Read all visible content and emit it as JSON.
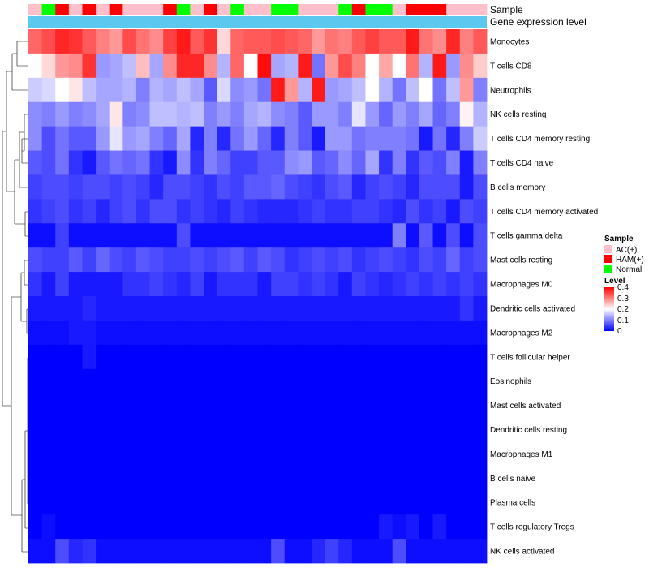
{
  "chart_data": {
    "type": "heatmap",
    "title": "",
    "annotation_labels": {
      "sample": "Sample",
      "expression": "Gene expression level"
    },
    "rows": [
      "Monocytes",
      "T cells CD8",
      "Neutrophils",
      "NK cells resting",
      "T cells CD4 memory resting",
      "T cells CD4 naive",
      "B cells memory",
      "T cells CD4 memory activated",
      "T cells gamma delta",
      "Mast cells resting",
      "Macrophages M0",
      "Dendritic cells activated",
      "Macrophages M2",
      "T cells follicular helper",
      "Eosinophils",
      "Mast cells activated",
      "Dendritic cells resting",
      "Macrophages M1",
      "B cells naive",
      "Plasma cells",
      "T cells regulatory  Tregs",
      "NK cells activated"
    ],
    "sample_groups": [
      "AC",
      "Normal",
      "HAM",
      "AC",
      "HAM",
      "AC",
      "HAM",
      "AC",
      "AC",
      "AC",
      "HAM",
      "Normal",
      "AC",
      "HAM",
      "AC",
      "Normal",
      "AC",
      "AC",
      "Normal",
      "Normal",
      "AC",
      "AC",
      "AC",
      "Normal",
      "HAM",
      "Normal",
      "Normal",
      "AC",
      "HAM",
      "HAM",
      "HAM",
      "AC",
      "AC",
      "AC"
    ],
    "values": [
      [
        0.32,
        0.34,
        0.37,
        0.36,
        0.33,
        0.3,
        0.28,
        0.34,
        0.31,
        0.29,
        0.35,
        0.38,
        0.33,
        0.36,
        0.23,
        0.32,
        0.33,
        0.33,
        0.34,
        0.33,
        0.32,
        0.28,
        0.31,
        0.3,
        0.33,
        0.35,
        0.33,
        0.33,
        0.38,
        0.31,
        0.29,
        0.37,
        0.3,
        0.33
      ],
      [
        0.2,
        0.23,
        0.28,
        0.29,
        0.36,
        0.12,
        0.13,
        0.15,
        0.25,
        0.13,
        0.29,
        0.37,
        0.37,
        0.29,
        0.14,
        0.32,
        0.2,
        0.39,
        0.13,
        0.14,
        0.38,
        0.09,
        0.28,
        0.34,
        0.3,
        0.2,
        0.27,
        0.2,
        0.31,
        0.14,
        0.38,
        0.12,
        0.29,
        0.24
      ],
      [
        0.16,
        0.17,
        0.2,
        0.22,
        0.15,
        0.13,
        0.13,
        0.14,
        0.1,
        0.14,
        0.13,
        0.15,
        0.13,
        0.07,
        0.17,
        0.11,
        0.12,
        0.09,
        0.38,
        0.28,
        0.14,
        0.38,
        0.12,
        0.13,
        0.15,
        0.2,
        0.14,
        0.09,
        0.15,
        0.2,
        0.09,
        0.15,
        0.28,
        0.1
      ],
      [
        0.11,
        0.1,
        0.12,
        0.1,
        0.11,
        0.13,
        0.22,
        0.1,
        0.11,
        0.15,
        0.15,
        0.14,
        0.15,
        0.1,
        0.12,
        0.1,
        0.13,
        0.14,
        0.11,
        0.1,
        0.07,
        0.12,
        0.12,
        0.1,
        0.18,
        0.12,
        0.08,
        0.12,
        0.1,
        0.13,
        0.08,
        0.1,
        0.21,
        0.14
      ],
      [
        0.11,
        0.06,
        0.09,
        0.07,
        0.07,
        0.12,
        0.18,
        0.12,
        0.13,
        0.1,
        0.08,
        0.13,
        0.03,
        0.1,
        0.03,
        0.09,
        0.12,
        0.08,
        0.03,
        0.1,
        0.07,
        0.02,
        0.12,
        0.12,
        0.09,
        0.1,
        0.1,
        0.1,
        0.09,
        0.02,
        0.09,
        0.03,
        0.1,
        0.16
      ],
      [
        0.07,
        0.06,
        0.09,
        0.04,
        0.02,
        0.07,
        0.09,
        0.08,
        0.09,
        0.04,
        0.02,
        0.11,
        0.04,
        0.1,
        0.08,
        0.05,
        0.05,
        0.07,
        0.07,
        0.11,
        0.12,
        0.07,
        0.08,
        0.11,
        0.08,
        0.13,
        0.04,
        0.1,
        0.04,
        0.07,
        0.06,
        0.1,
        0.02,
        0.1
      ],
      [
        0.05,
        0.06,
        0.06,
        0.05,
        0.06,
        0.06,
        0.05,
        0.06,
        0.05,
        0.03,
        0.06,
        0.06,
        0.05,
        0.04,
        0.06,
        0.05,
        0.07,
        0.07,
        0.08,
        0.06,
        0.05,
        0.04,
        0.06,
        0.07,
        0.03,
        0.05,
        0.06,
        0.05,
        0.03,
        0.06,
        0.06,
        0.06,
        0.02,
        0.06
      ],
      [
        0.04,
        0.05,
        0.06,
        0.04,
        0.05,
        0.03,
        0.05,
        0.06,
        0.04,
        0.06,
        0.06,
        0.04,
        0.05,
        0.04,
        0.03,
        0.05,
        0.04,
        0.03,
        0.03,
        0.03,
        0.04,
        0.05,
        0.04,
        0.04,
        0.05,
        0.05,
        0.04,
        0.03,
        0.06,
        0.04,
        0.05,
        0.02,
        0.06,
        0.05
      ],
      [
        0.01,
        0.01,
        0.05,
        0.01,
        0.01,
        0.01,
        0.01,
        0.01,
        0.01,
        0.01,
        0.01,
        0.06,
        0.01,
        0.01,
        0.01,
        0.01,
        0.01,
        0.01,
        0.01,
        0.01,
        0.01,
        0.01,
        0.01,
        0.01,
        0.01,
        0.01,
        0.01,
        0.1,
        0.01,
        0.07,
        0.01,
        0.06,
        0.01,
        0.06
      ],
      [
        0.06,
        0.05,
        0.05,
        0.07,
        0.05,
        0.08,
        0.06,
        0.05,
        0.07,
        0.06,
        0.05,
        0.05,
        0.06,
        0.05,
        0.06,
        0.07,
        0.05,
        0.07,
        0.06,
        0.04,
        0.05,
        0.06,
        0.05,
        0.06,
        0.04,
        0.05,
        0.06,
        0.05,
        0.04,
        0.06,
        0.05,
        0.08,
        0.05,
        0.06
      ],
      [
        0.04,
        0.02,
        0.05,
        0.02,
        0.02,
        0.02,
        0.02,
        0.04,
        0.04,
        0.05,
        0.04,
        0.03,
        0.05,
        0.02,
        0.04,
        0.04,
        0.04,
        0.02,
        0.05,
        0.05,
        0.04,
        0.05,
        0.04,
        0.02,
        0.05,
        0.04,
        0.03,
        0.04,
        0.05,
        0.04,
        0.05,
        0.04,
        0.05,
        0.04
      ],
      [
        0.02,
        0.02,
        0.02,
        0.02,
        0.03,
        0.02,
        0.02,
        0.02,
        0.02,
        0.02,
        0.02,
        0.02,
        0.02,
        0.02,
        0.02,
        0.02,
        0.02,
        0.02,
        0.02,
        0.02,
        0.02,
        0.02,
        0.02,
        0.02,
        0.02,
        0.02,
        0.02,
        0.02,
        0.02,
        0.02,
        0.02,
        0.02,
        0.04,
        0.02
      ],
      [
        0.01,
        0.01,
        0.01,
        0.02,
        0.02,
        0.01,
        0.01,
        0.01,
        0.01,
        0.01,
        0.01,
        0.01,
        0.01,
        0.01,
        0.01,
        0.01,
        0.01,
        0.01,
        0.01,
        0.01,
        0.01,
        0.01,
        0.01,
        0.01,
        0.01,
        0.01,
        0.01,
        0.01,
        0.01,
        0.01,
        0.01,
        0.01,
        0.01,
        0.01
      ],
      [
        0.0,
        0.0,
        0.0,
        0.0,
        0.02,
        0.0,
        0.0,
        0.0,
        0.0,
        0.0,
        0.0,
        0.0,
        0.0,
        0.0,
        0.0,
        0.0,
        0.0,
        0.0,
        0.0,
        0.0,
        0.0,
        0.0,
        0.0,
        0.0,
        0.0,
        0.0,
        0.0,
        0.0,
        0.0,
        0.0,
        0.0,
        0.0,
        0.0,
        0.0
      ],
      [
        0.0,
        0.0,
        0.0,
        0.0,
        0.0,
        0.0,
        0.0,
        0.0,
        0.0,
        0.0,
        0.0,
        0.0,
        0.0,
        0.0,
        0.0,
        0.0,
        0.0,
        0.0,
        0.0,
        0.0,
        0.0,
        0.0,
        0.0,
        0.0,
        0.0,
        0.0,
        0.0,
        0.0,
        0.0,
        0.0,
        0.0,
        0.0,
        0.0,
        0.0
      ],
      [
        0.0,
        0.0,
        0.0,
        0.0,
        0.0,
        0.0,
        0.0,
        0.0,
        0.0,
        0.0,
        0.0,
        0.0,
        0.0,
        0.0,
        0.0,
        0.0,
        0.0,
        0.0,
        0.0,
        0.0,
        0.0,
        0.0,
        0.0,
        0.0,
        0.0,
        0.0,
        0.0,
        0.0,
        0.0,
        0.0,
        0.0,
        0.0,
        0.0,
        0.0
      ],
      [
        0.0,
        0.0,
        0.0,
        0.0,
        0.0,
        0.0,
        0.0,
        0.0,
        0.0,
        0.0,
        0.0,
        0.0,
        0.0,
        0.0,
        0.0,
        0.0,
        0.0,
        0.0,
        0.0,
        0.0,
        0.0,
        0.0,
        0.0,
        0.0,
        0.0,
        0.0,
        0.0,
        0.0,
        0.0,
        0.0,
        0.0,
        0.0,
        0.0,
        0.0
      ],
      [
        0.0,
        0.0,
        0.0,
        0.0,
        0.0,
        0.0,
        0.0,
        0.0,
        0.0,
        0.0,
        0.0,
        0.0,
        0.0,
        0.0,
        0.0,
        0.0,
        0.0,
        0.0,
        0.0,
        0.0,
        0.0,
        0.0,
        0.0,
        0.0,
        0.0,
        0.0,
        0.0,
        0.0,
        0.0,
        0.0,
        0.0,
        0.0,
        0.0,
        0.0
      ],
      [
        0.0,
        0.0,
        0.0,
        0.0,
        0.0,
        0.0,
        0.0,
        0.0,
        0.0,
        0.0,
        0.0,
        0.0,
        0.0,
        0.0,
        0.0,
        0.0,
        0.0,
        0.0,
        0.0,
        0.0,
        0.0,
        0.0,
        0.0,
        0.0,
        0.0,
        0.0,
        0.0,
        0.0,
        0.0,
        0.0,
        0.0,
        0.0,
        0.0,
        0.0
      ],
      [
        0.0,
        0.0,
        0.0,
        0.0,
        0.0,
        0.0,
        0.0,
        0.0,
        0.0,
        0.0,
        0.0,
        0.0,
        0.0,
        0.0,
        0.0,
        0.0,
        0.0,
        0.0,
        0.0,
        0.0,
        0.0,
        0.0,
        0.0,
        0.0,
        0.0,
        0.0,
        0.0,
        0.0,
        0.0,
        0.0,
        0.0,
        0.0,
        0.0,
        0.0
      ],
      [
        0.0,
        0.01,
        0.0,
        0.0,
        0.0,
        0.0,
        0.0,
        0.0,
        0.0,
        0.0,
        0.0,
        0.0,
        0.0,
        0.0,
        0.0,
        0.0,
        0.0,
        0.0,
        0.0,
        0.0,
        0.0,
        0.0,
        0.0,
        0.0,
        0.0,
        0.0,
        0.02,
        0.01,
        0.02,
        0.0,
        0.02,
        0.0,
        0.0,
        0.0
      ],
      [
        0.01,
        0.01,
        0.06,
        0.03,
        0.04,
        0.01,
        0.01,
        0.01,
        0.01,
        0.01,
        0.01,
        0.01,
        0.01,
        0.01,
        0.01,
        0.01,
        0.01,
        0.01,
        0.06,
        0.01,
        0.01,
        0.03,
        0.05,
        0.03,
        0.01,
        0.01,
        0.01,
        0.06,
        0.01,
        0.01,
        0.01,
        0.01,
        0.01,
        0.01
      ]
    ],
    "color_scale": {
      "min": 0,
      "max": 0.4,
      "stops": [
        {
          "value": 0.0,
          "color": "#0000ff"
        },
        {
          "value": 0.2,
          "color": "#ffffff"
        },
        {
          "value": 0.4,
          "color": "#ff0000"
        }
      ]
    },
    "expression_bar_color": "#5bc8f0",
    "legend_position": "right",
    "legends": {
      "sample": {
        "title": "Sample",
        "entries": [
          {
            "key": "AC",
            "label": "AC(+)",
            "color": "#ffc0cb"
          },
          {
            "key": "HAM",
            "label": "HAM(+)",
            "color": "#ff0000"
          },
          {
            "key": "Normal",
            "label": "Normal",
            "color": "#00ff00"
          }
        ]
      },
      "level": {
        "title": "Level",
        "ticks": [
          "0.4",
          "0.3",
          "0.2",
          "0.1",
          "0"
        ]
      }
    },
    "row_dendrogram": true
  }
}
